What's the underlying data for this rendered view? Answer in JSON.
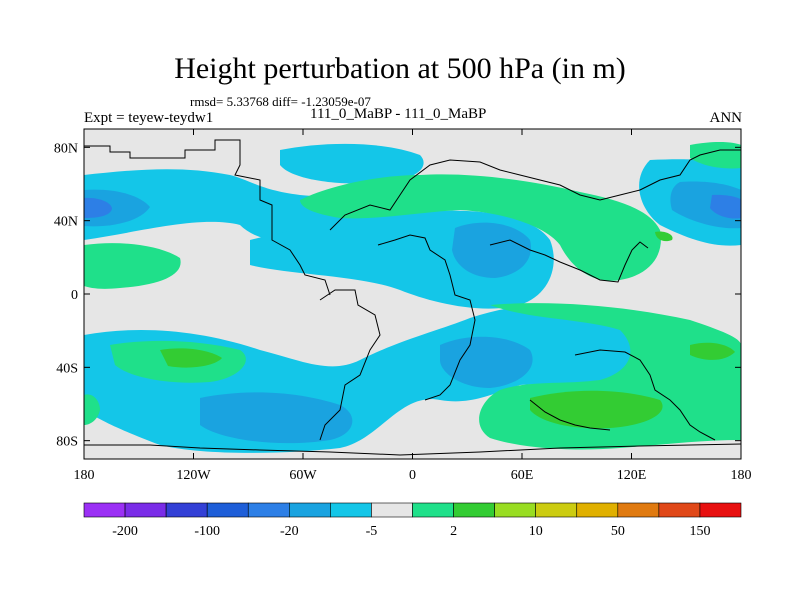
{
  "title": "Height perturbation at 500 hPa (in m)",
  "stats": "rmsd= 5.33768 diff= -1.23059e-07",
  "left_label": "Expt = teyew-teydw1",
  "center_label": "111_0_MaBP - 111_0_MaBP",
  "right_label": "ANN",
  "colors": {
    "levels": [
      "#9b30f5",
      "#7a2ce8",
      "#3340d6",
      "#1e5ed8",
      "#2d7fe6",
      "#1aa3e0",
      "#14c6e8",
      "#e6e6e6",
      "#1fe08a",
      "#33cc33",
      "#99dd22",
      "#cccc11",
      "#e0b000",
      "#e07a10",
      "#e04818",
      "#e81010"
    ],
    "land_outline": "#000000"
  },
  "chart_data": {
    "type": "heatmap",
    "title": "Height perturbation at 500 hPa (in m)",
    "subtitle": "rmsd= 5.33768 diff= -1.23059e-07",
    "xlabel": "",
    "ylabel": "",
    "x_range": [
      -180,
      180
    ],
    "y_range": [
      -90,
      90
    ],
    "x_ticks": [
      -180,
      -120,
      -60,
      0,
      60,
      120,
      180
    ],
    "x_tick_labels": [
      "180",
      "120W",
      "60W",
      "0",
      "60E",
      "120E",
      "180"
    ],
    "y_ticks": [
      80,
      40,
      0,
      -40,
      -80
    ],
    "y_tick_labels": [
      "80N",
      "40N",
      "0",
      "40S",
      "80S"
    ],
    "colorbar": {
      "labels": [
        "-200",
        "-100",
        "-20",
        "-5",
        "2",
        "10",
        "50",
        "150"
      ]
    },
    "features": [
      {
        "lon": -180,
        "lat": 44,
        "value": -40,
        "desc": "blue trough west edge"
      },
      {
        "lon": 180,
        "lat": 44,
        "value": -40,
        "desc": "blue trough east edge"
      },
      {
        "lon": 30,
        "lat": 30,
        "value": -15,
        "desc": "central trough"
      },
      {
        "lon": -60,
        "lat": -65,
        "value": -15,
        "desc": "southern trough"
      },
      {
        "lon": 20,
        "lat": -40,
        "value": -15,
        "desc": "southern Atlantic trough"
      },
      {
        "lon": 100,
        "lat": -60,
        "value": 15,
        "desc": "southern ridge"
      },
      {
        "lon": 0,
        "lat": 50,
        "value": 8,
        "desc": "northern ridge"
      },
      {
        "lon": -120,
        "lat": -32,
        "value": 10,
        "desc": "southern pacific ridge"
      }
    ]
  }
}
